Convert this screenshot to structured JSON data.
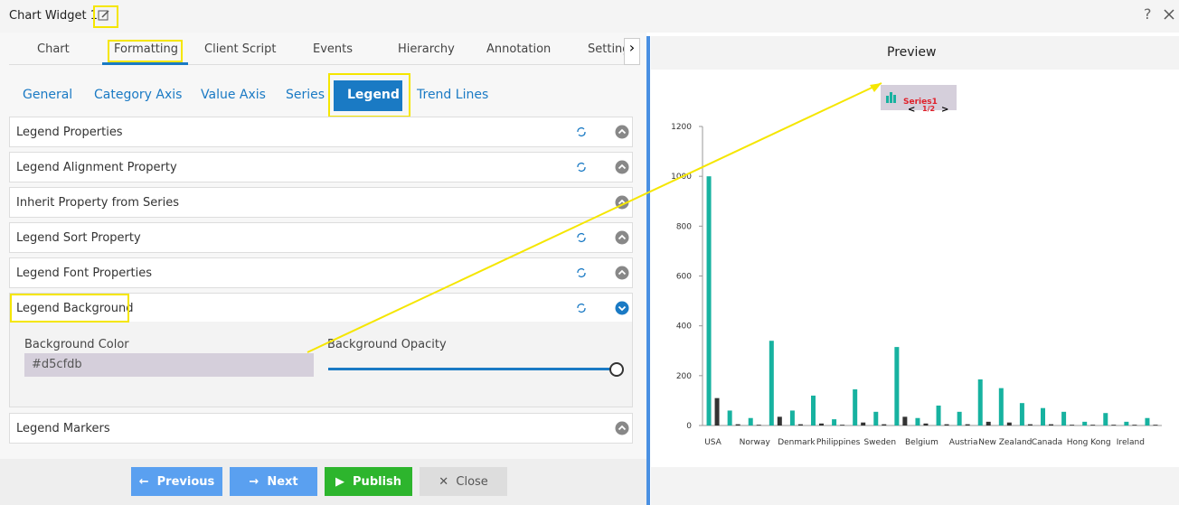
{
  "window": {
    "title": "Chart Widget 1"
  },
  "tabs": [
    "Chart",
    "Formatting",
    "Client Script",
    "Events",
    "Hierarchy",
    "Annotation",
    "Settings"
  ],
  "subtabs": [
    "General",
    "Category Axis",
    "Value Axis",
    "Series",
    "Legend",
    "Trend Lines"
  ],
  "sections": [
    "Legend Properties",
    "Legend Alignment Property",
    "Inherit Property from Series",
    "Legend Sort Property",
    "Legend Font Properties",
    "Legend Background",
    "Legend Markers"
  ],
  "background_color": {
    "label": "Background Color",
    "value": "#d5cfdb"
  },
  "background_opacity": {
    "label": "Background Opacity"
  },
  "buttons": [
    "Previous",
    "Next",
    "Publish",
    "Close"
  ],
  "preview": {
    "title": "Preview",
    "legend_page": "1/2",
    "chart_data": {
      "type": "bar",
      "categories": [
        "USA",
        null,
        "Norway",
        null,
        "Denmark",
        null,
        "Philippines",
        null,
        "Sweden",
        null,
        "Belgium",
        null,
        "Austria",
        null,
        "New Zealand",
        null,
        "Canada",
        null,
        "Hong Kong",
        null,
        "Ireland",
        null
      ],
      "series": [
        {
          "name": "Series1",
          "color": "#17b2a0",
          "values": [
            1000,
            60,
            30,
            340,
            60,
            120,
            25,
            145,
            55,
            315,
            30,
            80,
            55,
            185,
            150,
            90,
            70,
            55,
            15,
            50,
            15,
            30
          ]
        },
        {
          "color": "#333333",
          "values": [
            110,
            5,
            3,
            35,
            5,
            8,
            3,
            12,
            5,
            35,
            8,
            5,
            5,
            15,
            12,
            5,
            5,
            3,
            3,
            3,
            3,
            3
          ]
        }
      ],
      "ylim": [
        0,
        1200
      ],
      "yticks": [
        0,
        200,
        400,
        600,
        800,
        1000,
        1200
      ]
    }
  }
}
